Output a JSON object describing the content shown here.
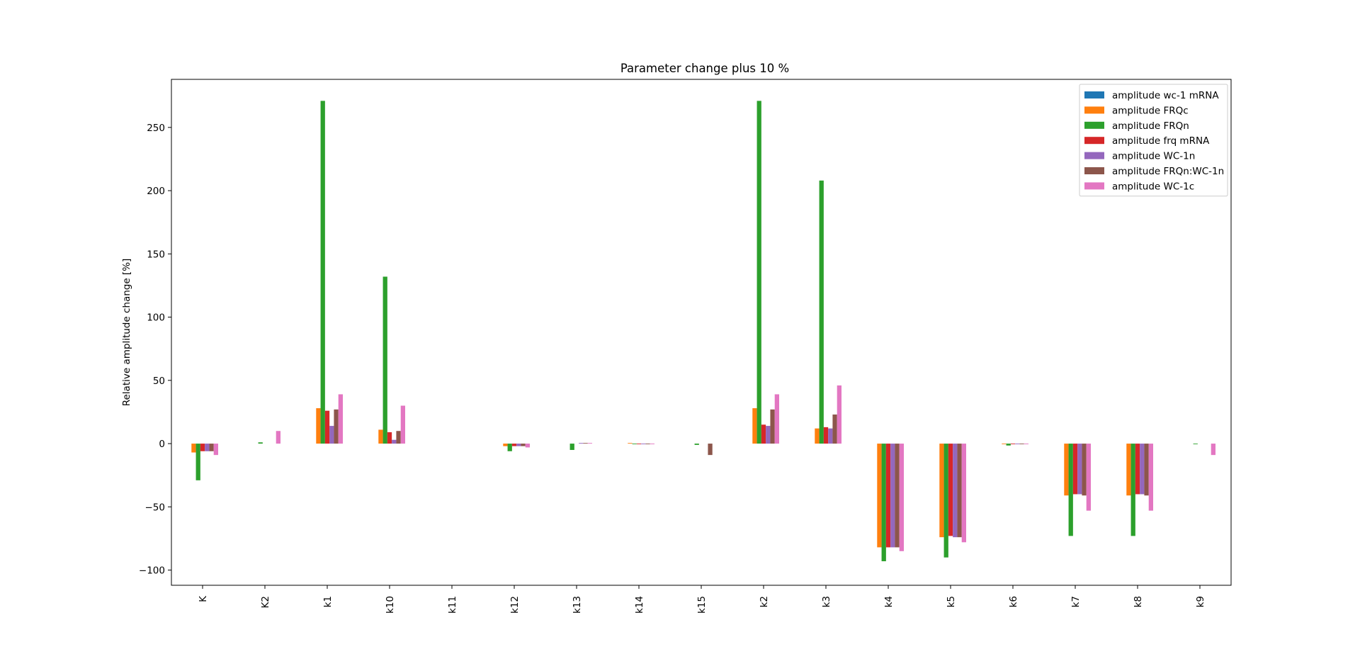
{
  "chart_data": {
    "type": "bar",
    "title": "Parameter change plus 10 %",
    "xlabel": "",
    "ylabel": "Relative amplitude change [%]",
    "ylim": [
      -112,
      288
    ],
    "yticks": [
      -100,
      -50,
      0,
      50,
      100,
      150,
      200,
      250
    ],
    "grid": false,
    "legend_position": "top-right",
    "categories": [
      "K",
      "K2",
      "k1",
      "k10",
      "k11",
      "k12",
      "k13",
      "k14",
      "k15",
      "k2",
      "k3",
      "k4",
      "k5",
      "k6",
      "k7",
      "k8",
      "k9"
    ],
    "series": [
      {
        "name": "amplitude wc-1 mRNA",
        "color": "#1f77b4",
        "values": [
          0,
          0,
          0,
          0,
          0,
          0,
          0,
          0,
          0,
          0,
          0,
          0,
          0,
          0,
          0,
          0,
          0
        ]
      },
      {
        "name": "amplitude FRQc",
        "color": "#ff7f0e",
        "values": [
          -7,
          0,
          28,
          11,
          0,
          -2,
          0,
          0.5,
          0,
          28,
          12,
          -82,
          -74,
          -0.5,
          -41,
          -41,
          0
        ]
      },
      {
        "name": "amplitude FRQn",
        "color": "#2ca02c",
        "values": [
          -29,
          1,
          271,
          132,
          0,
          -6,
          -5,
          -0.5,
          -1,
          271,
          208,
          -93,
          -90,
          -1.5,
          -73,
          -73,
          -0.5
        ]
      },
      {
        "name": "amplitude frq mRNA",
        "color": "#d62728",
        "values": [
          -6,
          0,
          26,
          9,
          0,
          -2,
          0,
          -0.5,
          0,
          15,
          13,
          -82,
          -73,
          -0.5,
          -40,
          -40,
          0
        ]
      },
      {
        "name": "amplitude WC-1n",
        "color": "#9467bd",
        "values": [
          -6,
          0,
          14,
          3,
          0,
          -2,
          0.5,
          -0.5,
          0,
          14,
          12,
          -82,
          -74,
          -0.5,
          -40,
          -40,
          0
        ]
      },
      {
        "name": "amplitude FRQn:WC-1n",
        "color": "#8c564b",
        "values": [
          -6,
          0,
          27,
          10,
          0,
          -2,
          0.5,
          -0.5,
          -9,
          27,
          23,
          -82,
          -74,
          -0.5,
          -41,
          -41,
          0
        ]
      },
      {
        "name": "amplitude WC-1c",
        "color": "#e377c2",
        "values": [
          -9,
          10,
          39,
          30,
          0,
          -3,
          0.5,
          -0.5,
          0,
          39,
          46,
          -85,
          -78,
          -0.5,
          -53,
          -53,
          -9
        ]
      }
    ]
  }
}
